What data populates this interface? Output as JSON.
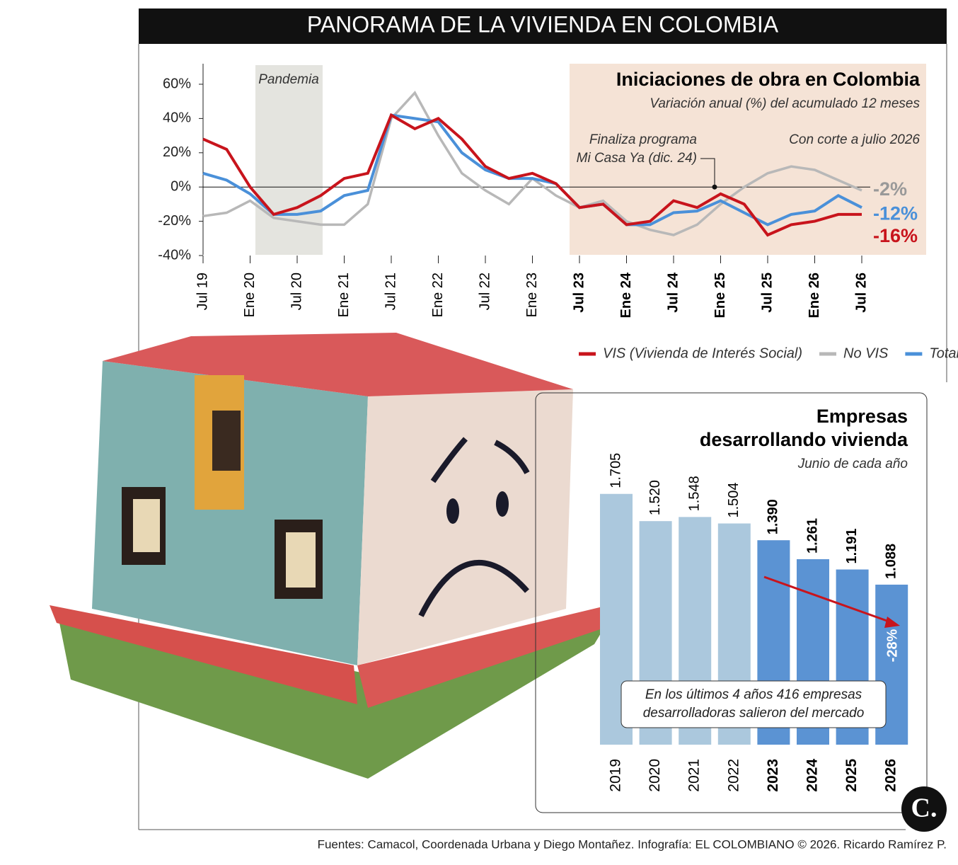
{
  "header": {
    "title": "PANORAMA DE LA VIVIENDA EN COLOMBIA"
  },
  "chart_data": [
    {
      "type": "line",
      "title": "Iniciaciones de obra en Colombia",
      "subtitle": "Variación anual (%) del acumulado 12 meses",
      "annotations": {
        "shade": "Pandemia",
        "event": "Finaliza programa Mi Casa Ya (dic. 24)",
        "cutoff": "Con corte a julio 2026"
      },
      "categories": [
        "Jul 19",
        null,
        "Ene 20",
        null,
        "Jul 20",
        null,
        "Ene 21",
        null,
        "Jul 21",
        null,
        "Ene 22",
        null,
        "Jul 22",
        null,
        "Ene 23",
        null,
        "Jul 23",
        null,
        "Ene 24",
        null,
        "Jul 24",
        null,
        "Ene 25",
        null,
        "Jul 25",
        null,
        "Ene 26",
        null,
        "Jul 26"
      ],
      "ylim": [
        -40,
        60
      ],
      "yticks": [
        {
          "value": -40,
          "label": "-40%"
        },
        {
          "value": -20,
          "label": "-20%"
        },
        {
          "value": 0,
          "label": "0%"
        },
        {
          "value": 20,
          "label": "20%"
        },
        {
          "value": 40,
          "label": "40%"
        },
        {
          "value": 60,
          "label": "60%"
        }
      ],
      "series": [
        {
          "name": "VIS (Vivienda de Interés Social)",
          "color": "#c8141c",
          "end_label": "-16%",
          "values": [
            28,
            22,
            0,
            -16,
            -12,
            -5,
            5,
            8,
            42,
            34,
            40,
            28,
            12,
            5,
            8,
            2,
            -12,
            -10,
            -22,
            -20,
            -8,
            -12,
            -4,
            -10,
            -28,
            -22,
            -20,
            -16,
            -16
          ]
        },
        {
          "name": "No VIS",
          "color": "#b8b8b8",
          "end_label": "-2%",
          "values": [
            -17,
            -15,
            -8,
            -18,
            -20,
            -22,
            -22,
            -10,
            40,
            55,
            30,
            8,
            -2,
            -10,
            5,
            -5,
            -12,
            -8,
            -20,
            -25,
            -28,
            -22,
            -10,
            0,
            8,
            12,
            10,
            4,
            -2
          ]
        },
        {
          "name": "Total",
          "color": "#4a90d9",
          "end_label": "-12%",
          "values": [
            8,
            4,
            -4,
            -16,
            -16,
            -14,
            -5,
            -2,
            42,
            40,
            38,
            20,
            10,
            5,
            5,
            2,
            -12,
            -10,
            -22,
            -22,
            -15,
            -14,
            -8,
            -15,
            -22,
            -16,
            -14,
            -5,
            -12
          ]
        }
      ]
    },
    {
      "type": "bar",
      "title": "Empresas desarrollando vivienda",
      "subtitle": "Junio de cada año",
      "categories": [
        "2019",
        "2020",
        "2021",
        "2022",
        "2023",
        "2024",
        "2025",
        "2026"
      ],
      "values": [
        1705,
        1520,
        1548,
        1504,
        1390,
        1261,
        1191,
        1088
      ],
      "value_labels": [
        "1.705",
        "1.520",
        "1.548",
        "1.504",
        "1.390",
        "1.261",
        "1.191",
        "1.088"
      ],
      "colors": [
        "#abc8dd",
        "#abc8dd",
        "#abc8dd",
        "#abc8dd",
        "#5b93d3",
        "#5b93d3",
        "#5b93d3",
        "#5b93d3"
      ],
      "ylim": [
        0,
        1800
      ],
      "annotations": {
        "change": "-28%",
        "note": [
          "En los últimos 4 años 416 empresas",
          "desarrolladoras salieron del mercado"
        ]
      }
    }
  ],
  "footer": {
    "source": "Fuentes: Camacol, Coordenada Urbana y Diego Montañez. Infografía: EL COLOMBIANO © 2026. Ricardo Ramírez P.",
    "logo": "C."
  }
}
